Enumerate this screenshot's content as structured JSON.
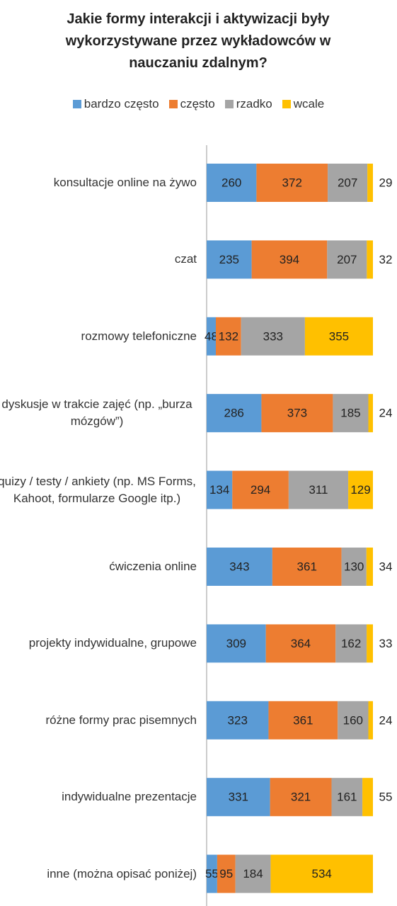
{
  "chart_data": {
    "type": "bar",
    "orientation": "horizontal",
    "stacked": "percent",
    "title": "Jakie formy interakcji i aktywizacji były wykorzystywane przez wykładowców w nauczaniu zdalnym?",
    "categories": [
      "konsultacje online na żywo",
      "czat",
      "rozmowy telefoniczne",
      "dyskusje w trakcie zajęć (np. „burza mózgów”)",
      "quizy / testy / ankiety (np. MS Forms, Kahoot, formularze Google itp.)",
      "ćwiczenia online",
      "projekty indywidualne, grupowe",
      "różne formy prac pisemnych",
      "indywidualne prezentacje",
      "inne (można opisać poniżej)"
    ],
    "series": [
      {
        "name": "bardzo często",
        "color": "#5b9bd5",
        "values": [
          260,
          235,
          48,
          286,
          134,
          343,
          309,
          323,
          331,
          55
        ]
      },
      {
        "name": "często",
        "color": "#ed7d31",
        "values": [
          372,
          394,
          132,
          373,
          294,
          361,
          364,
          361,
          321,
          95
        ]
      },
      {
        "name": "rzadko",
        "color": "#a5a5a5",
        "values": [
          207,
          207,
          333,
          185,
          311,
          130,
          162,
          160,
          161,
          184
        ]
      },
      {
        "name": "wcale",
        "color": "#ffc000",
        "values": [
          29,
          32,
          355,
          24,
          129,
          34,
          33,
          24,
          55,
          534
        ]
      }
    ],
    "legend": "top"
  }
}
